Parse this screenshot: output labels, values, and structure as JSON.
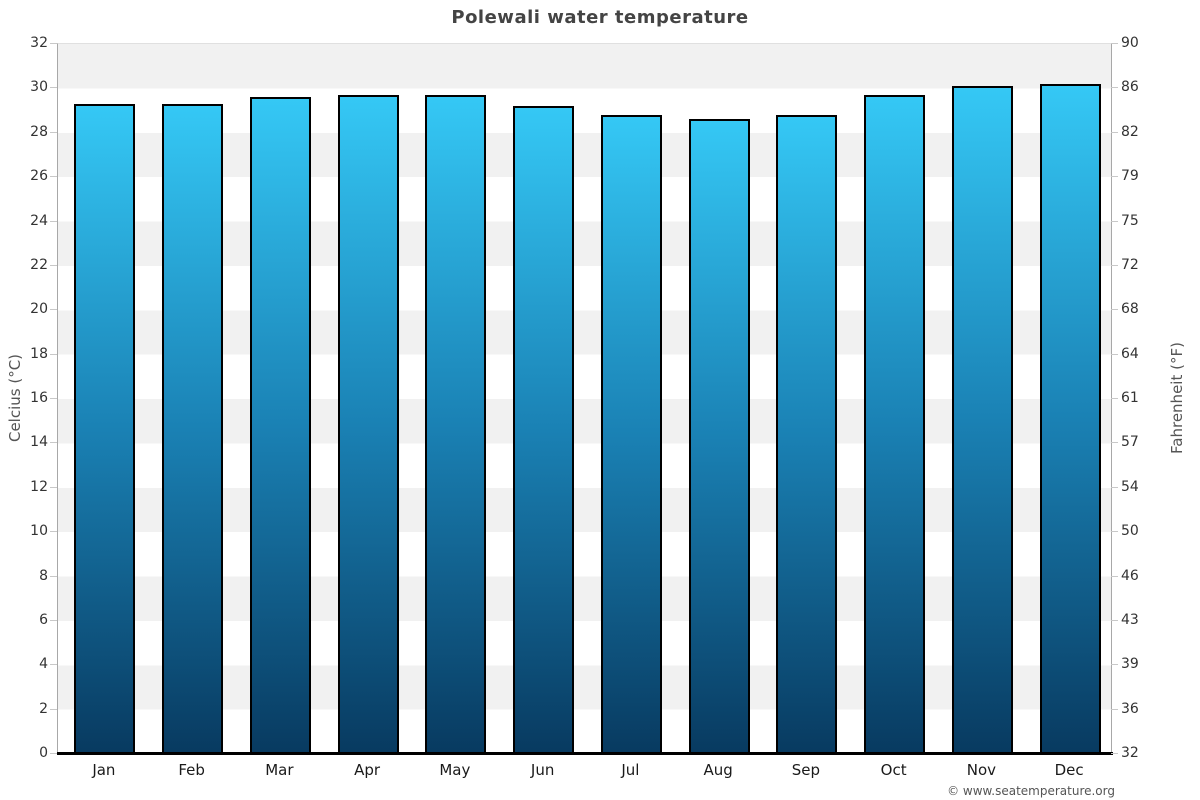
{
  "title": "Polewali water temperature",
  "footer": "© www.seatemperature.org",
  "chart_data": {
    "type": "bar",
    "title": "Polewali water temperature",
    "categories": [
      "Jan",
      "Feb",
      "Mar",
      "Apr",
      "May",
      "Jun",
      "Jul",
      "Aug",
      "Sep",
      "Oct",
      "Nov",
      "Dec"
    ],
    "values": [
      29.3,
      29.3,
      29.6,
      29.7,
      29.7,
      29.2,
      28.8,
      28.6,
      28.8,
      29.7,
      30.1,
      30.2
    ],
    "series_name": "Water temperature",
    "xlabel": "",
    "ylabel_left": "Celcius (°C)",
    "ylabel_right": "Fahrenheit (°F)",
    "ylim": [
      0,
      32
    ],
    "yticks_celsius": [
      32,
      30,
      28,
      26,
      24,
      22,
      20,
      18,
      16,
      14,
      12,
      10,
      8,
      6,
      4,
      2,
      0
    ],
    "yticks_fahrenheit": [
      90,
      86,
      82,
      79,
      75,
      72,
      68,
      64,
      61,
      57,
      54,
      50,
      46,
      43,
      39,
      36,
      32
    ],
    "legend": "none",
    "grid": "alternating-horizontal-bands",
    "colors": {
      "bar_gradient_top": "#35c8f5",
      "bar_gradient_mid": "#1a81b4",
      "bar_gradient_bottom": "#083a60",
      "bar_border": "#000000",
      "band_gray": "#f1f1f1",
      "band_white": "#ffffff",
      "axis_line": "#a8a8a8",
      "bottom_axis_line": "#000000",
      "title_text": "#444444",
      "tick_text": "#333333",
      "axis_title_text": "#555555",
      "footer_text": "#555555"
    }
  }
}
